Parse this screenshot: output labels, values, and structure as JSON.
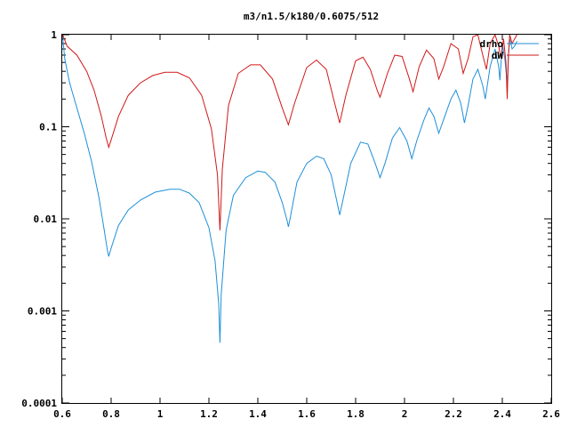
{
  "chart_data": {
    "type": "line",
    "title": "m3/n1.5/k180/0.6075/512",
    "xlabel": "",
    "ylabel": "",
    "x_range": [
      0.6,
      2.6
    ],
    "y_range": [
      0.0001,
      1
    ],
    "y_scale": "log",
    "grid": false,
    "legend_position": "top-right",
    "x_ticks": [
      "0.6",
      "0.8",
      "1",
      "1.2",
      "1.4",
      "1.6",
      "1.8",
      "2",
      "2.2",
      "2.4",
      "2.6"
    ],
    "y_ticks": [
      "1",
      "0.1",
      "0.01",
      "0.001",
      "0.0001"
    ],
    "series": [
      {
        "name": "drho",
        "color": "#1f8fd8",
        "points": [
          [
            0.602,
            0.95
          ],
          [
            0.61,
            0.55
          ],
          [
            0.63,
            0.3
          ],
          [
            0.66,
            0.16
          ],
          [
            0.69,
            0.085
          ],
          [
            0.72,
            0.042
          ],
          [
            0.75,
            0.017
          ],
          [
            0.77,
            0.008
          ],
          [
            0.785,
            0.0045
          ],
          [
            0.79,
            0.0039
          ],
          [
            0.8,
            0.0048
          ],
          [
            0.83,
            0.0085
          ],
          [
            0.87,
            0.0125
          ],
          [
            0.92,
            0.016
          ],
          [
            0.98,
            0.0195
          ],
          [
            1.04,
            0.021
          ],
          [
            1.08,
            0.021
          ],
          [
            1.12,
            0.019
          ],
          [
            1.16,
            0.015
          ],
          [
            1.2,
            0.008
          ],
          [
            1.225,
            0.0035
          ],
          [
            1.24,
            0.0012
          ],
          [
            1.245,
            0.00045
          ],
          [
            1.25,
            0.0015
          ],
          [
            1.27,
            0.0075
          ],
          [
            1.3,
            0.018
          ],
          [
            1.35,
            0.028
          ],
          [
            1.4,
            0.033
          ],
          [
            1.43,
            0.032
          ],
          [
            1.47,
            0.025
          ],
          [
            1.5,
            0.015
          ],
          [
            1.52,
            0.0095
          ],
          [
            1.525,
            0.0082
          ],
          [
            1.53,
            0.0095
          ],
          [
            1.56,
            0.025
          ],
          [
            1.6,
            0.04
          ],
          [
            1.64,
            0.048
          ],
          [
            1.67,
            0.045
          ],
          [
            1.7,
            0.03
          ],
          [
            1.72,
            0.017
          ],
          [
            1.735,
            0.011
          ],
          [
            1.75,
            0.017
          ],
          [
            1.78,
            0.04
          ],
          [
            1.82,
            0.068
          ],
          [
            1.85,
            0.065
          ],
          [
            1.88,
            0.04
          ],
          [
            1.9,
            0.028
          ],
          [
            1.92,
            0.04
          ],
          [
            1.95,
            0.075
          ],
          [
            1.98,
            0.098
          ],
          [
            2.01,
            0.07
          ],
          [
            2.03,
            0.045
          ],
          [
            2.05,
            0.07
          ],
          [
            2.08,
            0.12
          ],
          [
            2.1,
            0.16
          ],
          [
            2.12,
            0.13
          ],
          [
            2.14,
            0.085
          ],
          [
            2.16,
            0.12
          ],
          [
            2.19,
            0.2
          ],
          [
            2.21,
            0.25
          ],
          [
            2.23,
            0.18
          ],
          [
            2.245,
            0.11
          ],
          [
            2.26,
            0.17
          ],
          [
            2.28,
            0.33
          ],
          [
            2.3,
            0.42
          ],
          [
            2.32,
            0.28
          ],
          [
            2.33,
            0.2
          ],
          [
            2.35,
            0.45
          ],
          [
            2.37,
            0.7
          ],
          [
            2.385,
            0.45
          ],
          [
            2.39,
            0.32
          ],
          [
            2.4,
            0.8
          ],
          [
            2.41,
            0.55
          ],
          [
            2.42,
            0.3
          ],
          [
            2.425,
            0.6
          ],
          [
            2.43,
            0.9
          ],
          [
            2.44,
            0.7
          ],
          [
            2.45,
            0.75
          ],
          [
            2.46,
            0.85
          ]
        ]
      },
      {
        "name": "dW",
        "color": "#d01818",
        "points": [
          [
            0.602,
            1.0
          ],
          [
            0.62,
            0.75
          ],
          [
            0.66,
            0.6
          ],
          [
            0.7,
            0.4
          ],
          [
            0.73,
            0.25
          ],
          [
            0.76,
            0.13
          ],
          [
            0.78,
            0.075
          ],
          [
            0.79,
            0.06
          ],
          [
            0.8,
            0.072
          ],
          [
            0.83,
            0.13
          ],
          [
            0.87,
            0.22
          ],
          [
            0.92,
            0.3
          ],
          [
            0.97,
            0.36
          ],
          [
            1.02,
            0.39
          ],
          [
            1.07,
            0.39
          ],
          [
            1.12,
            0.34
          ],
          [
            1.17,
            0.22
          ],
          [
            1.21,
            0.095
          ],
          [
            1.235,
            0.03
          ],
          [
            1.245,
            0.0075
          ],
          [
            1.255,
            0.035
          ],
          [
            1.28,
            0.17
          ],
          [
            1.32,
            0.38
          ],
          [
            1.37,
            0.47
          ],
          [
            1.41,
            0.47
          ],
          [
            1.46,
            0.33
          ],
          [
            1.5,
            0.16
          ],
          [
            1.525,
            0.105
          ],
          [
            1.55,
            0.18
          ],
          [
            1.6,
            0.44
          ],
          [
            1.64,
            0.53
          ],
          [
            1.68,
            0.42
          ],
          [
            1.71,
            0.2
          ],
          [
            1.735,
            0.11
          ],
          [
            1.76,
            0.22
          ],
          [
            1.8,
            0.52
          ],
          [
            1.83,
            0.57
          ],
          [
            1.86,
            0.42
          ],
          [
            1.89,
            0.24
          ],
          [
            1.9,
            0.21
          ],
          [
            1.93,
            0.38
          ],
          [
            1.96,
            0.6
          ],
          [
            1.99,
            0.58
          ],
          [
            2.02,
            0.33
          ],
          [
            2.035,
            0.24
          ],
          [
            2.06,
            0.45
          ],
          [
            2.09,
            0.68
          ],
          [
            2.12,
            0.55
          ],
          [
            2.14,
            0.33
          ],
          [
            2.16,
            0.45
          ],
          [
            2.19,
            0.8
          ],
          [
            2.22,
            0.7
          ],
          [
            2.24,
            0.38
          ],
          [
            2.26,
            0.55
          ],
          [
            2.28,
            0.95
          ],
          [
            2.3,
            1.0
          ],
          [
            2.32,
            0.6
          ],
          [
            2.335,
            0.42
          ],
          [
            2.35,
            0.8
          ],
          [
            2.37,
            1.0
          ],
          [
            2.385,
            0.75
          ],
          [
            2.395,
            0.55
          ],
          [
            2.405,
            0.9
          ],
          [
            2.415,
            0.5
          ],
          [
            2.42,
            0.2
          ],
          [
            2.425,
            0.6
          ],
          [
            2.43,
            1.0
          ],
          [
            2.44,
            0.8
          ],
          [
            2.45,
            0.9
          ],
          [
            2.46,
            1.0
          ]
        ]
      }
    ]
  }
}
